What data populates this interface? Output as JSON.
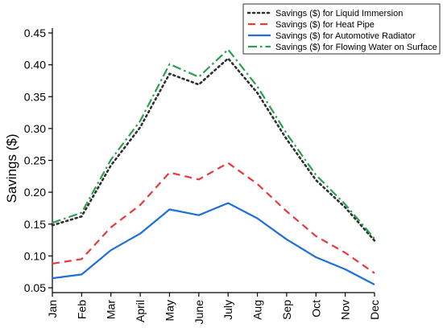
{
  "chart_data": {
    "type": "line",
    "title": "",
    "xlabel": "",
    "ylabel": "Savings ($)",
    "categories": [
      "Jan",
      "Feb",
      "Mar",
      "April",
      "May",
      "June",
      "July",
      "Aug",
      "Sep",
      "Oct",
      "Nov",
      "Dec"
    ],
    "ylim": [
      0.05,
      0.45
    ],
    "yticks": [
      "0.05",
      "0.10",
      "0.15",
      "0.20",
      "0.25",
      "0.30",
      "0.35",
      "0.40",
      "0.45"
    ],
    "grid": false,
    "legend_position": "top-right",
    "series": [
      {
        "name": "Savings ($) for Liquid Immersion",
        "color": "#2f2f2f",
        "style": "dotted",
        "values": [
          0.148,
          0.162,
          0.242,
          0.302,
          0.386,
          0.369,
          0.41,
          0.356,
          0.283,
          0.219,
          0.176,
          0.124
        ]
      },
      {
        "name": "Savings ($) for Heat Pipe",
        "color": "#e8393c",
        "style": "dashed",
        "values": [
          0.088,
          0.095,
          0.145,
          0.18,
          0.231,
          0.22,
          0.246,
          0.213,
          0.17,
          0.131,
          0.105,
          0.073
        ]
      },
      {
        "name": "Savings ($) for Automotive Radiator",
        "color": "#1f6fd6",
        "style": "solid",
        "values": [
          0.065,
          0.071,
          0.109,
          0.135,
          0.173,
          0.164,
          0.183,
          0.159,
          0.126,
          0.098,
          0.079,
          0.055
        ]
      },
      {
        "name": "Savings ($) for Flowing Water on Surface",
        "color": "#2e9e4f",
        "style": "dashdot",
        "values": [
          0.152,
          0.168,
          0.251,
          0.312,
          0.401,
          0.381,
          0.424,
          0.366,
          0.292,
          0.227,
          0.181,
          0.127
        ]
      }
    ]
  }
}
